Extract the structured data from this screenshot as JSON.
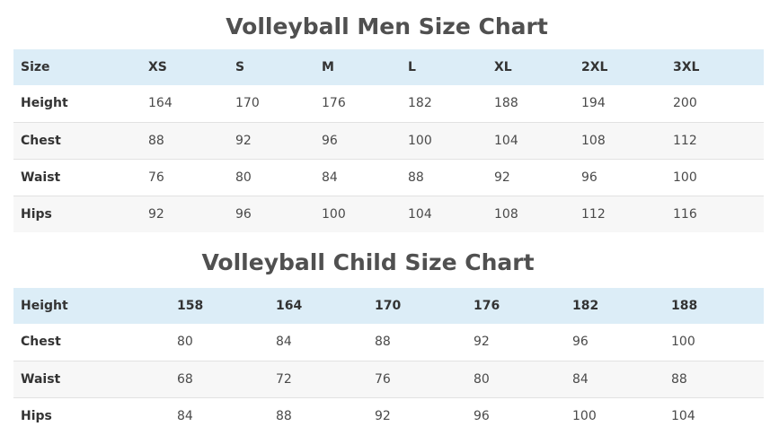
{
  "men": {
    "title": "Volleyball Men Size Chart",
    "header": [
      "Size",
      "XS",
      "S",
      "M",
      "L",
      "XL",
      "2XL",
      "3XL"
    ],
    "rows": [
      [
        "Height",
        "164",
        "170",
        "176",
        "182",
        "188",
        "194",
        "200"
      ],
      [
        "Chest",
        "88",
        "92",
        "96",
        "100",
        "104",
        "108",
        "112"
      ],
      [
        "Waist",
        "76",
        "80",
        "84",
        "88",
        "92",
        "96",
        "100"
      ],
      [
        "Hips",
        "92",
        "96",
        "100",
        "104",
        "108",
        "112",
        "116"
      ]
    ]
  },
  "child": {
    "title": "Volleyball Child Size Chart",
    "header": [
      "Height",
      "158",
      "164",
      "170",
      "176",
      "182",
      "188"
    ],
    "rows": [
      [
        "Chest",
        "80",
        "84",
        "88",
        "92",
        "96",
        "100"
      ],
      [
        "Waist",
        "68",
        "72",
        "76",
        "80",
        "84",
        "88"
      ],
      [
        "Hips",
        "84",
        "88",
        "92",
        "96",
        "100",
        "104"
      ]
    ]
  },
  "colors": {
    "header_background": "#dcedf7",
    "title_text": "#505050",
    "alt_row_background": "#f7f7f7"
  }
}
